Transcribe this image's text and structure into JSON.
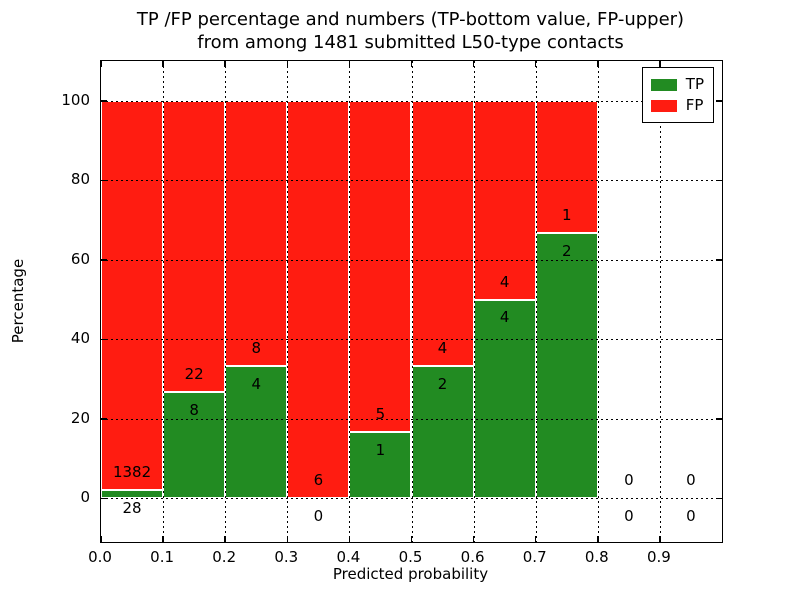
{
  "title": {
    "line1": "TP /FP percentage and numbers (TP-bottom value, FP-upper)",
    "line2": "from among 1481 submitted L50-type contacts"
  },
  "axes": {
    "xlabel": "Predicted probability",
    "ylabel": "Percentage",
    "x_ticks": [
      {
        "value": 0.0,
        "label": "0.0"
      },
      {
        "value": 0.1,
        "label": "0.1"
      },
      {
        "value": 0.2,
        "label": "0.2"
      },
      {
        "value": 0.3,
        "label": "0.3"
      },
      {
        "value": 0.4,
        "label": "0.4"
      },
      {
        "value": 0.5,
        "label": "0.5"
      },
      {
        "value": 0.6,
        "label": "0.6"
      },
      {
        "value": 0.7,
        "label": "0.7"
      },
      {
        "value": 0.8,
        "label": "0.8"
      },
      {
        "value": 0.9,
        "label": "0.9"
      }
    ],
    "y_ticks": [
      {
        "value": 0,
        "label": "0"
      },
      {
        "value": 20,
        "label": "20"
      },
      {
        "value": 40,
        "label": "40"
      },
      {
        "value": 60,
        "label": "60"
      },
      {
        "value": 80,
        "label": "80"
      },
      {
        "value": 100,
        "label": "100"
      }
    ]
  },
  "legend": {
    "items": [
      {
        "label": "TP",
        "color": "#228b22"
      },
      {
        "label": "FP",
        "color": "#ff1c11"
      }
    ]
  },
  "colors": {
    "tp_green": "#228b22",
    "fp_red": "#ff1c11",
    "grid": "#000000",
    "spine": "#000000",
    "background": "#ffffff"
  },
  "chart_data": {
    "type": "bar",
    "stacked": true,
    "normalized_to_percent": true,
    "title": "TP /FP percentage and numbers (TP-bottom value, FP-upper) from among 1481 submitted L50-type contacts",
    "xlabel": "Predicted probability",
    "ylabel": "Percentage",
    "xlim": [
      0.0,
      1.0
    ],
    "ylim": [
      -11,
      110
    ],
    "grid": true,
    "grid_style": "dotted",
    "legend_position": "upper right",
    "bin_width": 0.1,
    "bins": [
      {
        "x_start": 0.0,
        "x_end": 0.1,
        "tp_count": 28,
        "fp_count": 1382
      },
      {
        "x_start": 0.1,
        "x_end": 0.2,
        "tp_count": 8,
        "fp_count": 22
      },
      {
        "x_start": 0.2,
        "x_end": 0.3,
        "tp_count": 4,
        "fp_count": 8
      },
      {
        "x_start": 0.3,
        "x_end": 0.4,
        "tp_count": 0,
        "fp_count": 6
      },
      {
        "x_start": 0.4,
        "x_end": 0.5,
        "tp_count": 1,
        "fp_count": 5
      },
      {
        "x_start": 0.5,
        "x_end": 0.6,
        "tp_count": 2,
        "fp_count": 4
      },
      {
        "x_start": 0.6,
        "x_end": 0.7,
        "tp_count": 4,
        "fp_count": 4
      },
      {
        "x_start": 0.7,
        "x_end": 0.8,
        "tp_count": 2,
        "fp_count": 1
      },
      {
        "x_start": 0.8,
        "x_end": 0.9,
        "tp_count": 0,
        "fp_count": 0
      },
      {
        "x_start": 0.9,
        "x_end": 1.0,
        "tp_count": 0,
        "fp_count": 0
      }
    ]
  }
}
